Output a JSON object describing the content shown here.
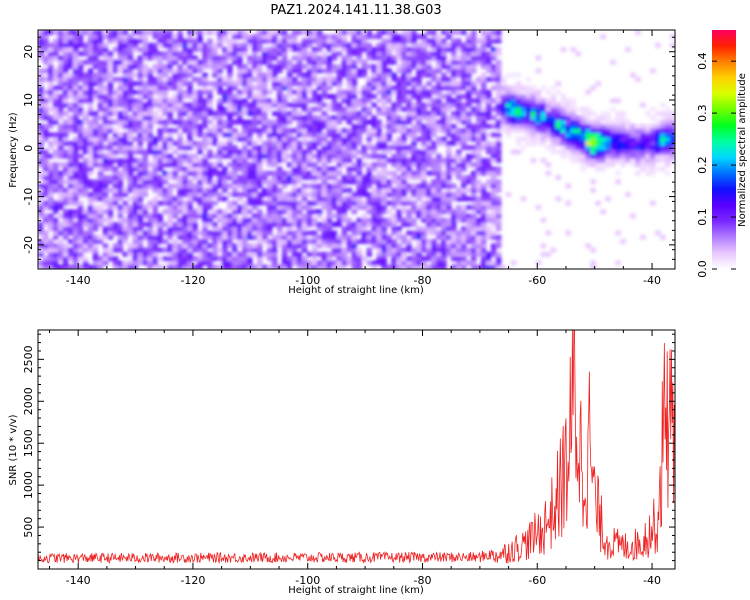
{
  "title": "PAZ1.2024.141.11.38.G03",
  "chart_data": [
    {
      "type": "heatmap",
      "xlabel": "Height of straight line (km)",
      "ylabel": "Frequency (Hz)",
      "xlim": [
        -147,
        -36
      ],
      "ylim": [
        -25,
        24.5
      ],
      "xticks": [
        -140,
        -120,
        -100,
        -80,
        -60,
        -40
      ],
      "yticks": [
        -20,
        -10,
        0,
        10,
        20
      ],
      "colorbar": {
        "label": "Normalized spectral amplitude",
        "range": [
          0,
          0.46
        ],
        "ticks": [
          0.0,
          0.1,
          0.2,
          0.3,
          0.4
        ],
        "colors": [
          "#ffffff",
          "#e9c8ff",
          "#b07cff",
          "#7a28ff",
          "#5a00ff",
          "#1010ff",
          "#0070ff",
          "#00d8ff",
          "#00ffa0",
          "#00ff20",
          "#70ff00",
          "#d8ff00",
          "#ffd000",
          "#ff8000",
          "#ff2000",
          "#ff0060"
        ]
      },
      "noise_region": {
        "x": [
          -147,
          -66
        ],
        "y": [
          -25,
          24.5
        ],
        "typical_amplitude": 0.07
      },
      "signal_ridge": [
        {
          "x": -68,
          "y": 9.5,
          "amp": 0.1
        },
        {
          "x": -64,
          "y": 8.0,
          "amp": 0.22
        },
        {
          "x": -60,
          "y": 7.0,
          "amp": 0.18
        },
        {
          "x": -56,
          "y": 4.5,
          "amp": 0.2
        },
        {
          "x": -53,
          "y": 3.0,
          "amp": 0.22
        },
        {
          "x": -50,
          "y": 1.0,
          "amp": 0.32
        },
        {
          "x": -46,
          "y": 1.5,
          "amp": 0.15
        },
        {
          "x": -42,
          "y": 0.5,
          "amp": 0.12
        },
        {
          "x": -38,
          "y": 2.0,
          "amp": 0.18
        }
      ]
    },
    {
      "type": "line",
      "xlabel": "Height of straight line (km)",
      "ylabel": "SNR (10 * v/v)",
      "xlim": [
        -147,
        -36
      ],
      "ylim": [
        0,
        2850
      ],
      "xticks": [
        -140,
        -120,
        -100,
        -80,
        -60,
        -40
      ],
      "yticks": [
        500,
        1000,
        1500,
        2000,
        2500
      ],
      "color": "#ee2222",
      "profile": [
        {
          "x": -147,
          "y": 130
        },
        {
          "x": -70,
          "y": 140
        },
        {
          "x": -66,
          "y": 230
        },
        {
          "x": -62,
          "y": 380
        },
        {
          "x": -59,
          "y": 600
        },
        {
          "x": -57,
          "y": 900
        },
        {
          "x": -55,
          "y": 1500
        },
        {
          "x": -54,
          "y": 2100
        },
        {
          "x": -53.5,
          "y": 2840
        },
        {
          "x": -53,
          "y": 2100
        },
        {
          "x": -52,
          "y": 1400
        },
        {
          "x": -51,
          "y": 1950
        },
        {
          "x": -50,
          "y": 1000
        },
        {
          "x": -48,
          "y": 420
        },
        {
          "x": -45,
          "y": 330
        },
        {
          "x": -42,
          "y": 380
        },
        {
          "x": -39,
          "y": 700
        },
        {
          "x": -38,
          "y": 2000
        },
        {
          "x": -37.5,
          "y": 2800
        },
        {
          "x": -37,
          "y": 2300
        },
        {
          "x": -36,
          "y": 1700
        }
      ]
    }
  ]
}
